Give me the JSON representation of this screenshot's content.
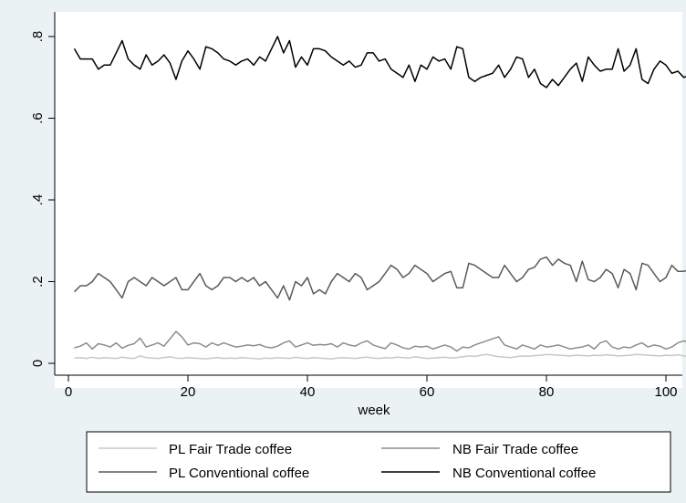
{
  "chart_data": {
    "type": "line",
    "title": "",
    "xlabel": "week",
    "ylabel": "",
    "xlim": [
      0,
      105
    ],
    "ylim": [
      0,
      0.8
    ],
    "xticks": [
      0,
      20,
      40,
      60,
      80,
      100
    ],
    "xtick_labels": [
      "0",
      "20",
      "40",
      "60",
      "80",
      "100"
    ],
    "yticks": [
      0,
      0.2,
      0.4,
      0.6,
      0.8
    ],
    "ytick_labels": [
      "0",
      ".2",
      ".4",
      ".6",
      ".8"
    ],
    "grid": false,
    "legend_position": "bottom",
    "x": [
      1,
      2,
      3,
      4,
      5,
      6,
      7,
      8,
      9,
      10,
      11,
      12,
      13,
      14,
      15,
      16,
      17,
      18,
      19,
      20,
      21,
      22,
      23,
      24,
      25,
      26,
      27,
      28,
      29,
      30,
      31,
      32,
      33,
      34,
      35,
      36,
      37,
      38,
      39,
      40,
      41,
      42,
      43,
      44,
      45,
      46,
      47,
      48,
      49,
      50,
      51,
      52,
      53,
      54,
      55,
      56,
      57,
      58,
      59,
      60,
      61,
      62,
      63,
      64,
      65,
      66,
      67,
      68,
      69,
      70,
      71,
      72,
      73,
      74,
      75,
      76,
      77,
      78,
      79,
      80,
      81,
      82,
      83,
      84,
      85,
      86,
      87,
      88,
      89,
      90,
      91,
      92,
      93,
      94,
      95,
      96,
      97,
      98,
      99,
      100,
      101,
      102,
      103,
      104
    ],
    "series": [
      {
        "name": "PL Fair Trade coffee",
        "color": "#c8c8c8",
        "values": [
          0.013,
          0.014,
          0.012,
          0.015,
          0.012,
          0.014,
          0.013,
          0.012,
          0.015,
          0.013,
          0.012,
          0.018,
          0.014,
          0.013,
          0.012,
          0.014,
          0.016,
          0.013,
          0.012,
          0.014,
          0.013,
          0.012,
          0.011,
          0.013,
          0.014,
          0.012,
          0.013,
          0.012,
          0.014,
          0.013,
          0.012,
          0.011,
          0.013,
          0.012,
          0.014,
          0.013,
          0.012,
          0.015,
          0.013,
          0.012,
          0.014,
          0.013,
          0.012,
          0.011,
          0.013,
          0.014,
          0.013,
          0.012,
          0.014,
          0.015,
          0.013,
          0.012,
          0.014,
          0.013,
          0.015,
          0.014,
          0.013,
          0.016,
          0.014,
          0.012,
          0.013,
          0.014,
          0.015,
          0.013,
          0.014,
          0.016,
          0.018,
          0.017,
          0.02,
          0.022,
          0.019,
          0.016,
          0.015,
          0.014,
          0.016,
          0.018,
          0.017,
          0.019,
          0.02,
          0.022,
          0.021,
          0.02,
          0.019,
          0.018,
          0.02,
          0.019,
          0.018,
          0.02,
          0.019,
          0.021,
          0.02,
          0.018,
          0.019,
          0.02,
          0.022,
          0.021,
          0.02,
          0.019,
          0.018,
          0.02,
          0.019,
          0.021,
          0.018,
          0.017
        ]
      },
      {
        "name": "NB Fair Trade coffee",
        "color": "#8c8c8c",
        "values": [
          0.038,
          0.042,
          0.05,
          0.035,
          0.048,
          0.045,
          0.04,
          0.05,
          0.037,
          0.044,
          0.048,
          0.062,
          0.04,
          0.045,
          0.05,
          0.042,
          0.06,
          0.078,
          0.065,
          0.045,
          0.05,
          0.048,
          0.04,
          0.05,
          0.044,
          0.05,
          0.045,
          0.04,
          0.042,
          0.045,
          0.043,
          0.046,
          0.04,
          0.038,
          0.042,
          0.05,
          0.055,
          0.04,
          0.045,
          0.05,
          0.044,
          0.046,
          0.045,
          0.048,
          0.04,
          0.05,
          0.045,
          0.042,
          0.05,
          0.055,
          0.045,
          0.04,
          0.036,
          0.05,
          0.045,
          0.038,
          0.035,
          0.042,
          0.04,
          0.042,
          0.035,
          0.04,
          0.045,
          0.04,
          0.03,
          0.04,
          0.038,
          0.045,
          0.05,
          0.055,
          0.06,
          0.065,
          0.045,
          0.04,
          0.035,
          0.045,
          0.04,
          0.035,
          0.045,
          0.04,
          0.042,
          0.045,
          0.04,
          0.035,
          0.038,
          0.04,
          0.045,
          0.035,
          0.05,
          0.055,
          0.04,
          0.035,
          0.04,
          0.038,
          0.045,
          0.05,
          0.04,
          0.045,
          0.042,
          0.035,
          0.04,
          0.05,
          0.055,
          0.05
        ]
      },
      {
        "name": "PL Conventional coffee",
        "color": "#5a5a5a",
        "values": [
          0.175,
          0.19,
          0.19,
          0.2,
          0.22,
          0.21,
          0.2,
          0.18,
          0.16,
          0.2,
          0.21,
          0.2,
          0.19,
          0.21,
          0.2,
          0.19,
          0.2,
          0.21,
          0.18,
          0.18,
          0.2,
          0.22,
          0.19,
          0.18,
          0.19,
          0.21,
          0.21,
          0.2,
          0.21,
          0.2,
          0.21,
          0.19,
          0.2,
          0.18,
          0.16,
          0.19,
          0.155,
          0.2,
          0.19,
          0.21,
          0.17,
          0.18,
          0.17,
          0.2,
          0.22,
          0.21,
          0.2,
          0.22,
          0.21,
          0.18,
          0.19,
          0.2,
          0.22,
          0.24,
          0.23,
          0.21,
          0.22,
          0.24,
          0.23,
          0.22,
          0.2,
          0.21,
          0.22,
          0.225,
          0.185,
          0.185,
          0.245,
          0.24,
          0.23,
          0.22,
          0.21,
          0.21,
          0.24,
          0.22,
          0.2,
          0.21,
          0.23,
          0.235,
          0.255,
          0.26,
          0.24,
          0.255,
          0.245,
          0.24,
          0.2,
          0.25,
          0.205,
          0.2,
          0.21,
          0.23,
          0.22,
          0.185,
          0.23,
          0.22,
          0.18,
          0.245,
          0.24,
          0.22,
          0.2,
          0.21,
          0.24,
          0.225,
          0.225,
          0.23
        ]
      },
      {
        "name": "NB Conventional coffee",
        "color": "#000000",
        "values": [
          0.77,
          0.745,
          0.745,
          0.745,
          0.72,
          0.73,
          0.73,
          0.76,
          0.79,
          0.745,
          0.73,
          0.72,
          0.755,
          0.73,
          0.74,
          0.755,
          0.735,
          0.695,
          0.74,
          0.765,
          0.745,
          0.72,
          0.775,
          0.77,
          0.76,
          0.745,
          0.74,
          0.73,
          0.74,
          0.745,
          0.73,
          0.75,
          0.74,
          0.77,
          0.8,
          0.76,
          0.79,
          0.725,
          0.75,
          0.73,
          0.77,
          0.77,
          0.765,
          0.75,
          0.74,
          0.73,
          0.74,
          0.725,
          0.73,
          0.76,
          0.76,
          0.74,
          0.745,
          0.72,
          0.71,
          0.7,
          0.73,
          0.69,
          0.73,
          0.72,
          0.75,
          0.74,
          0.745,
          0.72,
          0.775,
          0.77,
          0.7,
          0.69,
          0.7,
          0.705,
          0.71,
          0.73,
          0.7,
          0.72,
          0.75,
          0.745,
          0.7,
          0.72,
          0.685,
          0.675,
          0.695,
          0.68,
          0.7,
          0.72,
          0.735,
          0.69,
          0.75,
          0.73,
          0.715,
          0.72,
          0.72,
          0.77,
          0.715,
          0.73,
          0.77,
          0.695,
          0.685,
          0.72,
          0.74,
          0.73,
          0.71,
          0.715,
          0.7,
          0.705
        ]
      }
    ]
  },
  "legend": {
    "items": [
      {
        "label": "PL Fair Trade coffee",
        "color": "#c8c8c8"
      },
      {
        "label": "NB Fair Trade coffee",
        "color": "#8c8c8c"
      },
      {
        "label": "PL Conventional coffee",
        "color": "#5a5a5a"
      },
      {
        "label": "NB Conventional coffee",
        "color": "#000000"
      }
    ]
  }
}
